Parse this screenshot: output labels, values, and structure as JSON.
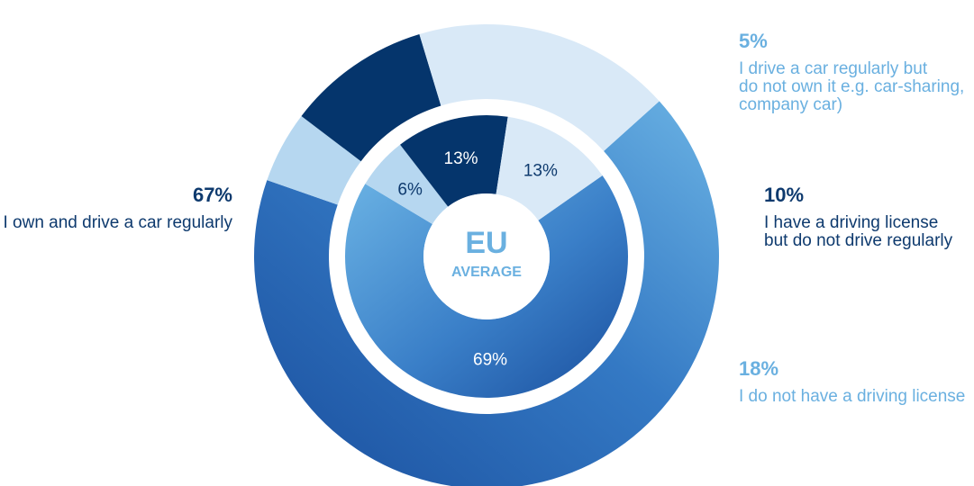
{
  "colors": {
    "own_drive": "#1e5aa8",
    "drive_not_own": "#b6d7f0",
    "license_not_drive": "#05356c",
    "no_license": "#d9e9f7",
    "text_dark": "#0e3a6e",
    "text_light": "#6ab0e0",
    "center_text": "#6ab0e0"
  },
  "center": {
    "line1": "EU",
    "line2": "AVERAGE"
  },
  "chart_data": {
    "type": "pie",
    "categories": [
      "I own and drive a car regularly",
      "I drive a car regularly but do not own it e.g. car-sharing, company car)",
      "I have a driving license but do not drive regularly",
      "I do not have a driving license"
    ],
    "series": [
      {
        "values": [
          67,
          5,
          10,
          18
        ]
      },
      {
        "values": [
          69,
          6,
          13,
          13
        ]
      }
    ],
    "outer_labels": [
      "67%",
      "5%",
      "10%",
      "18%"
    ],
    "inner_labels": [
      "69%",
      "6%",
      "13%",
      "13%"
    ]
  },
  "annotations": [
    {
      "pct": "67%",
      "lines": [
        "I own and drive a car regularly"
      ]
    },
    {
      "pct": "5%",
      "lines": [
        "I drive a car regularly but",
        "do not own it e.g. car-sharing,",
        "company car)"
      ]
    },
    {
      "pct": "10%",
      "lines": [
        "I have a driving license",
        "but do not drive regularly"
      ]
    },
    {
      "pct": "18%",
      "lines": [
        "I do not have a driving license"
      ]
    }
  ]
}
